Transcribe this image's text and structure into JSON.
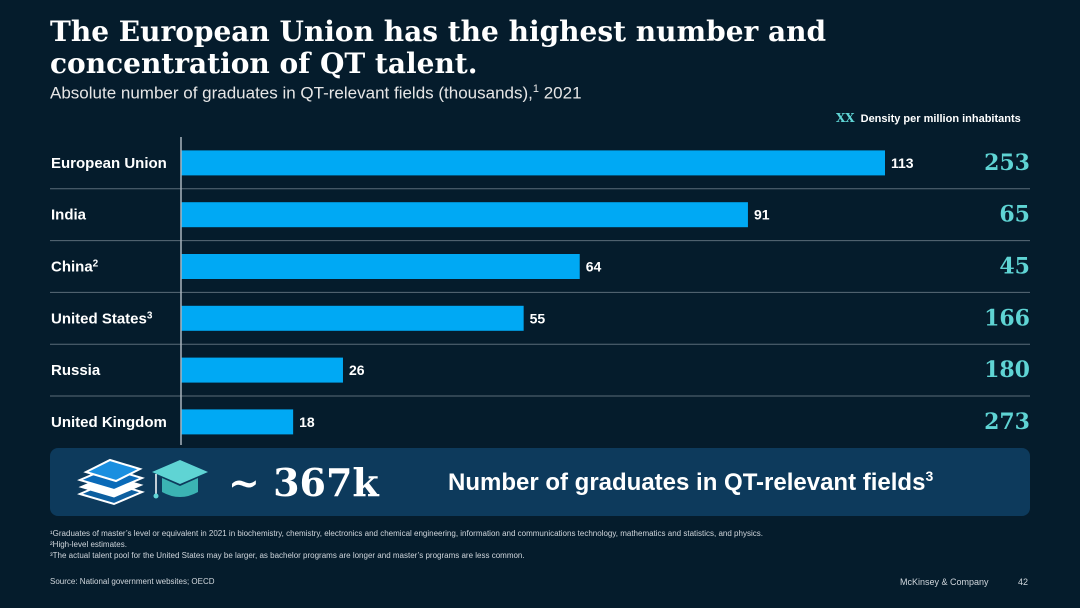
{
  "title": "The European Union has the highest number and concentration of QT talent.",
  "subtitle": "Absolute number of graduates in QT-relevant fields (thousands),",
  "subtitle_sup": "1",
  "subtitle_year": " 2021",
  "legend": {
    "marker": "XX",
    "text": "Density per million inhabitants"
  },
  "colors": {
    "background": "#051c2c",
    "bar": "#00a9f4",
    "density": "#5fd4d4",
    "callout": "#0d3a5c"
  },
  "chart_data": {
    "type": "bar",
    "orientation": "horizontal",
    "categories": [
      "European Union",
      "India",
      "China",
      "United States",
      "Russia",
      "United Kingdom"
    ],
    "category_sups": [
      "",
      "",
      "2",
      "3",
      "",
      ""
    ],
    "values": [
      113,
      91,
      64,
      55,
      26,
      18
    ],
    "density": [
      253,
      65,
      45,
      166,
      180,
      273
    ],
    "xlim": [
      0,
      113
    ]
  },
  "callout": {
    "value": "~ 367k",
    "label": "Number of graduates in QT-relevant fields",
    "label_sup": "3",
    "icons": [
      "books-icon",
      "graduation-cap-icon"
    ]
  },
  "footnotes": [
    "¹Graduates of master’s level or equivalent in 2021 in biochemistry, chemistry, electronics and chemical engineering, information and communications technology, mathematics and statistics, and physics.",
    "²High-level estimates.",
    "³The actual talent pool for the United States may be larger, as bachelor programs are longer and master’s programs are less common."
  ],
  "source": "Source: National government websites; OECD",
  "brand": "McKinsey & Company",
  "page_number": "42"
}
